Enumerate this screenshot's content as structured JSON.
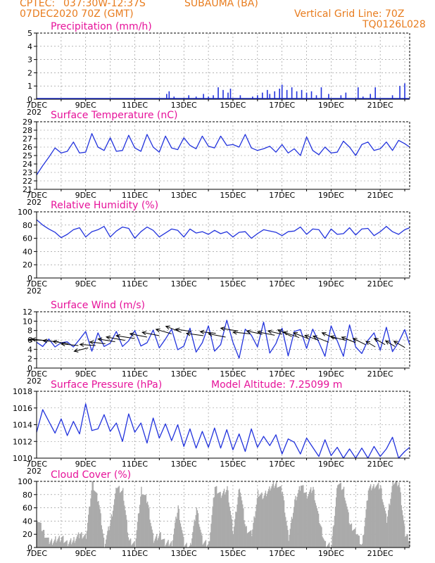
{
  "header": {
    "source": "CPTEC:",
    "location_coords": "037:30W-12:37S",
    "location_name": "SUBAUMA (BA)",
    "date": "07DEC2020 70Z (GMT)",
    "grid_line": "Vertical Grid Line: 70Z",
    "code": "TQ0126L028"
  },
  "x_labels": [
    "7DEC",
    "9DEC",
    "11DEC",
    "13DEC",
    "15DEC",
    "17DEC",
    "19DEC",
    "21DEC"
  ],
  "x_year_fragment": "202",
  "model_altitude": "Model Altitude: 7.25099 m",
  "colors": {
    "header": "#e87c1e",
    "title": "#e6129a",
    "line": "#2233dd",
    "cloud": "#aaaaaa",
    "grid": "#888888"
  },
  "chart_data": [
    {
      "type": "bar",
      "title": "Precipitation (mm/h)",
      "ylim": [
        0,
        5
      ],
      "yticks": [
        0,
        1,
        2,
        3,
        4,
        5
      ],
      "xlim_days": [
        7,
        22.2
      ],
      "spikes": [
        [
          12.3,
          0.4
        ],
        [
          12.4,
          0.6
        ],
        [
          12.6,
          0.2
        ],
        [
          13.0,
          0.1
        ],
        [
          13.2,
          0.3
        ],
        [
          13.5,
          0.2
        ],
        [
          13.8,
          0.4
        ],
        [
          14.0,
          0.2
        ],
        [
          14.2,
          0.3
        ],
        [
          14.4,
          0.9
        ],
        [
          14.6,
          0.7
        ],
        [
          14.8,
          0.5
        ],
        [
          14.9,
          0.8
        ],
        [
          15.3,
          0.3
        ],
        [
          15.8,
          0.2
        ],
        [
          16.0,
          0.3
        ],
        [
          16.2,
          0.5
        ],
        [
          16.4,
          0.7
        ],
        [
          16.5,
          0.4
        ],
        [
          16.7,
          0.6
        ],
        [
          16.9,
          0.8
        ],
        [
          17.0,
          1.1
        ],
        [
          17.2,
          0.7
        ],
        [
          17.4,
          0.9
        ],
        [
          17.6,
          0.6
        ],
        [
          17.8,
          0.7
        ],
        [
          18.0,
          0.5
        ],
        [
          18.2,
          0.6
        ],
        [
          18.4,
          0.3
        ],
        [
          18.6,
          0.9
        ],
        [
          18.9,
          0.4
        ],
        [
          19.4,
          0.3
        ],
        [
          19.6,
          0.5
        ],
        [
          20.1,
          0.9
        ],
        [
          20.3,
          0.2
        ],
        [
          20.6,
          0.4
        ],
        [
          20.8,
          0.9
        ],
        [
          21.5,
          0.3
        ],
        [
          21.8,
          1.0
        ],
        [
          22.0,
          1.2
        ]
      ]
    },
    {
      "type": "line",
      "title": "Surface Temperature (nC)",
      "ylim": [
        21,
        29
      ],
      "yticks": [
        21,
        22,
        23,
        24,
        25,
        26,
        27,
        28,
        29
      ],
      "x": [
        7.0,
        7.25,
        7.5,
        7.75,
        8.0,
        8.25,
        8.5,
        8.75,
        9.0,
        9.25,
        9.5,
        9.75,
        10.0,
        10.25,
        10.5,
        10.75,
        11.0,
        11.25,
        11.5,
        11.75,
        12.0,
        12.25,
        12.5,
        12.75,
        13.0,
        13.25,
        13.5,
        13.75,
        14.0,
        14.25,
        14.5,
        14.75,
        15.0,
        15.25,
        15.5,
        15.75,
        16.0,
        16.25,
        16.5,
        16.75,
        17.0,
        17.25,
        17.5,
        17.75,
        18.0,
        18.25,
        18.5,
        18.75,
        19.0,
        19.25,
        19.5,
        19.75,
        20.0,
        20.25,
        20.5,
        20.75,
        21.0,
        21.25,
        21.5,
        21.75,
        22.0,
        22.2
      ],
      "y": [
        22.7,
        23.8,
        24.8,
        25.9,
        25.3,
        25.5,
        26.6,
        25.3,
        25.4,
        27.6,
        26.0,
        25.6,
        27.1,
        25.5,
        25.6,
        27.4,
        25.9,
        25.5,
        27.5,
        26.0,
        25.4,
        27.3,
        25.9,
        25.7,
        27.1,
        26.2,
        25.8,
        27.3,
        26.1,
        25.9,
        27.3,
        26.2,
        26.3,
        26.0,
        27.5,
        25.9,
        25.6,
        25.8,
        26.1,
        25.4,
        26.3,
        25.3,
        25.8,
        25.0,
        27.2,
        25.6,
        25.1,
        26.0,
        25.3,
        25.4,
        26.7,
        26.0,
        25.0,
        26.3,
        26.6,
        25.6,
        25.8,
        26.6,
        25.6,
        26.8,
        26.4,
        26.0
      ]
    },
    {
      "type": "line",
      "title": "Relative Humidity (%)",
      "ylim": [
        0,
        100
      ],
      "yticks": [
        0,
        20,
        40,
        60,
        80,
        100
      ],
      "x": [
        7.0,
        7.25,
        7.5,
        7.75,
        8.0,
        8.25,
        8.5,
        8.75,
        9.0,
        9.25,
        9.5,
        9.75,
        10.0,
        10.25,
        10.5,
        10.75,
        11.0,
        11.25,
        11.5,
        11.75,
        12.0,
        12.25,
        12.5,
        12.75,
        13.0,
        13.25,
        13.5,
        13.75,
        14.0,
        14.25,
        14.5,
        14.75,
        15.0,
        15.25,
        15.5,
        15.75,
        16.0,
        16.25,
        16.5,
        16.75,
        17.0,
        17.25,
        17.5,
        17.75,
        18.0,
        18.25,
        18.5,
        18.75,
        19.0,
        19.25,
        19.5,
        19.75,
        20.0,
        20.25,
        20.5,
        20.75,
        21.0,
        21.25,
        21.5,
        21.75,
        22.0,
        22.2
      ],
      "y": [
        88,
        80,
        74,
        69,
        61,
        66,
        73,
        76,
        62,
        70,
        73,
        78,
        62,
        71,
        77,
        75,
        60,
        70,
        77,
        72,
        62,
        68,
        74,
        72,
        62,
        74,
        68,
        70,
        66,
        72,
        67,
        70,
        62,
        69,
        70,
        60,
        67,
        73,
        71,
        69,
        64,
        70,
        71,
        77,
        66,
        74,
        73,
        60,
        74,
        66,
        67,
        76,
        65,
        74,
        75,
        64,
        70,
        78,
        70,
        66,
        73,
        76
      ]
    },
    {
      "type": "line",
      "title": "Surface Wind (m/s)",
      "ylim": [
        0,
        12
      ],
      "yticks": [
        0,
        2,
        4,
        6,
        8,
        10,
        12
      ],
      "x": [
        7.0,
        7.25,
        7.5,
        7.75,
        8.0,
        8.25,
        8.5,
        8.75,
        9.0,
        9.25,
        9.5,
        9.75,
        10.0,
        10.25,
        10.5,
        10.75,
        11.0,
        11.25,
        11.5,
        11.75,
        12.0,
        12.25,
        12.5,
        12.75,
        13.0,
        13.25,
        13.5,
        13.75,
        14.0,
        14.25,
        14.5,
        14.75,
        15.0,
        15.25,
        15.5,
        15.75,
        16.0,
        16.25,
        16.5,
        16.75,
        17.0,
        17.25,
        17.5,
        17.75,
        18.0,
        18.25,
        18.5,
        18.75,
        19.0,
        19.25,
        19.5,
        19.75,
        20.0,
        20.25,
        20.5,
        20.75,
        21.0,
        21.25,
        21.5,
        21.75,
        22.0,
        22.2
      ],
      "y": [
        5.5,
        4.6,
        6.2,
        4.5,
        5.4,
        5.6,
        4.5,
        6.1,
        7.8,
        3.6,
        7.5,
        4.6,
        5.3,
        7.8,
        4.6,
        5.8,
        8.0,
        4.7,
        5.4,
        8.1,
        4.3,
        6.2,
        8.3,
        3.9,
        4.7,
        8.5,
        3.4,
        5.4,
        9.0,
        3.6,
        5.0,
        10.2,
        5.5,
        2.1,
        8.3,
        7.0,
        4.5,
        9.8,
        3.2,
        5.2,
        8.5,
        2.6,
        7.8,
        8.2,
        4.2,
        8.3,
        5.5,
        2.5,
        9.0,
        5.8,
        2.5,
        9.2,
        4.5,
        3.1,
        5.9,
        7.5,
        3.8,
        8.7,
        3.5,
        5.5,
        8.2,
        5.0
      ],
      "vectors": [
        [
          7.3,
          5.9,
          -1.0,
          -0.1
        ],
        [
          7.5,
          5.8,
          -1.1,
          -0.3
        ],
        [
          7.9,
          5.6,
          -1.0,
          -0.2
        ],
        [
          8.3,
          5.2,
          -1.0,
          -0.4
        ],
        [
          8.7,
          4.8,
          -1.1,
          -0.3
        ],
        [
          9.1,
          4.3,
          -0.9,
          0.6
        ],
        [
          9.4,
          4.8,
          -1.0,
          -0.2
        ],
        [
          9.8,
          5.2,
          -1.0,
          -0.3
        ],
        [
          10.2,
          5.6,
          -1.1,
          -0.5
        ],
        [
          10.6,
          5.9,
          -1.2,
          -0.6
        ],
        [
          11.0,
          6.3,
          -1.2,
          -0.5
        ],
        [
          11.5,
          6.6,
          -1.1,
          -0.6
        ],
        [
          12.0,
          6.9,
          -1.1,
          -0.6
        ],
        [
          12.5,
          7.3,
          -1.0,
          -0.8
        ],
        [
          12.9,
          7.6,
          -1.0,
          -1.1
        ],
        [
          13.3,
          7.8,
          -1.0,
          -0.4
        ],
        [
          13.8,
          6.9,
          -1.1,
          -0.4
        ],
        [
          14.3,
          7.4,
          -1.0,
          -0.3
        ],
        [
          14.7,
          6.6,
          -1.1,
          -0.6
        ],
        [
          15.2,
          7.9,
          -1.1,
          -0.5
        ],
        [
          15.7,
          7.3,
          -1.1,
          -0.3
        ],
        [
          16.2,
          7.2,
          -1.0,
          -0.6
        ],
        [
          16.7,
          7.0,
          -1.1,
          -0.6
        ],
        [
          17.0,
          7.2,
          -0.9,
          -0.6
        ],
        [
          17.4,
          6.7,
          -0.9,
          -1.2
        ],
        [
          17.7,
          6.5,
          -1.0,
          -1.0
        ],
        [
          18.1,
          6.2,
          -1.0,
          -1.1
        ],
        [
          18.5,
          5.9,
          -0.9,
          -0.9
        ],
        [
          18.9,
          5.5,
          -1.0,
          -1.1
        ],
        [
          19.2,
          6.2,
          -0.9,
          -1.1
        ],
        [
          19.6,
          5.9,
          -1.0,
          -0.7
        ],
        [
          20.0,
          5.4,
          -0.9,
          -1.0
        ],
        [
          20.4,
          5.0,
          -0.8,
          -1.1
        ],
        [
          20.8,
          4.5,
          -0.6,
          -1.0
        ],
        [
          21.2,
          5.0,
          -0.7,
          -1.1
        ],
        [
          21.6,
          4.6,
          -0.6,
          -1.0
        ],
        [
          22.0,
          4.4,
          -0.7,
          -1.1
        ]
      ]
    },
    {
      "type": "line",
      "title": "Surface Pressure (hPa)",
      "ylim": [
        1010,
        1018
      ],
      "yticks": [
        1010,
        1012,
        1014,
        1016,
        1018
      ],
      "x": [
        7.0,
        7.25,
        7.5,
        7.75,
        8.0,
        8.25,
        8.5,
        8.75,
        9.0,
        9.25,
        9.5,
        9.75,
        10.0,
        10.25,
        10.5,
        10.75,
        11.0,
        11.25,
        11.5,
        11.75,
        12.0,
        12.25,
        12.5,
        12.75,
        13.0,
        13.25,
        13.5,
        13.75,
        14.0,
        14.25,
        14.5,
        14.75,
        15.0,
        15.25,
        15.5,
        15.75,
        16.0,
        16.25,
        16.5,
        16.75,
        17.0,
        17.25,
        17.5,
        17.75,
        18.0,
        18.25,
        18.5,
        18.75,
        19.0,
        19.25,
        19.5,
        19.75,
        20.0,
        20.25,
        20.5,
        20.75,
        21.0,
        21.25,
        21.5,
        21.75,
        22.0,
        22.2
      ],
      "y": [
        1013.1,
        1015.8,
        1014.4,
        1013.0,
        1014.7,
        1012.7,
        1014.4,
        1012.9,
        1016.5,
        1013.3,
        1013.5,
        1015.2,
        1013.2,
        1014.2,
        1012.0,
        1015.3,
        1013.1,
        1014.2,
        1011.8,
        1014.8,
        1012.4,
        1014.1,
        1012.1,
        1014.0,
        1011.4,
        1013.5,
        1011.2,
        1013.2,
        1011.3,
        1013.6,
        1011.2,
        1013.4,
        1011.0,
        1012.9,
        1010.8,
        1013.5,
        1011.3,
        1012.6,
        1011.5,
        1012.8,
        1010.5,
        1012.3,
        1011.9,
        1010.5,
        1012.4,
        1011.3,
        1010.2,
        1012.2,
        1010.3,
        1011.3,
        1009.5,
        1011.1,
        1009.9,
        1011.2,
        1009.8,
        1011.4,
        1010.2,
        1011.1,
        1012.5,
        1009.6,
        1010.8,
        1011.3
      ]
    },
    {
      "type": "bar",
      "title": "Cloud Cover (%)",
      "ylim": [
        0,
        100
      ],
      "yticks": [
        0,
        20,
        40,
        60,
        80,
        100
      ],
      "x": [
        7.0,
        7.25,
        7.5,
        7.75,
        8.0,
        8.25,
        8.5,
        8.75,
        9.0,
        9.25,
        9.5,
        9.75,
        10.0,
        10.25,
        10.5,
        10.75,
        11.0,
        11.25,
        11.5,
        11.75,
        12.0,
        12.25,
        12.5,
        12.75,
        13.0,
        13.25,
        13.5,
        13.75,
        14.0,
        14.25,
        14.5,
        14.75,
        15.0,
        15.25,
        15.5,
        15.75,
        16.0,
        16.25,
        16.5,
        16.75,
        17.0,
        17.25,
        17.5,
        17.75,
        18.0,
        18.25,
        18.5,
        18.75,
        19.0,
        19.25,
        19.5,
        19.75,
        20.0,
        20.25,
        20.5,
        20.75,
        21.0,
        21.25,
        21.5,
        21.75,
        22.0,
        22.2
      ],
      "y": [
        45,
        25,
        8,
        12,
        15,
        6,
        12,
        20,
        18,
        98,
        72,
        5,
        40,
        92,
        85,
        10,
        5,
        88,
        70,
        12,
        20,
        6,
        8,
        62,
        4,
        2,
        60,
        8,
        5,
        92,
        80,
        90,
        22,
        95,
        30,
        20,
        82,
        78,
        90,
        98,
        85,
        15,
        70,
        95,
        80,
        90,
        40,
        5,
        3,
        98,
        88,
        35,
        25,
        3,
        88,
        95,
        92,
        40,
        100,
        98,
        20,
        10
      ]
    }
  ]
}
